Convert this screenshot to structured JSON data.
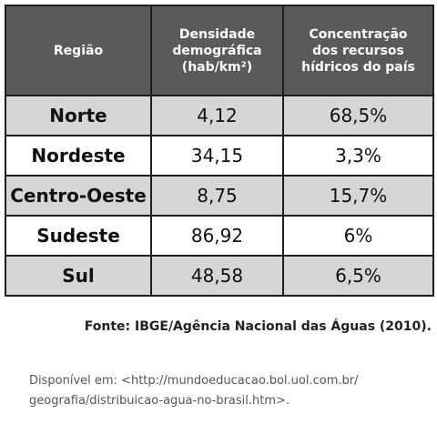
{
  "table": {
    "headers": [
      {
        "lines": [
          "Região"
        ]
      },
      {
        "lines": [
          "Densidade",
          "demográfica",
          "(hab/km²)"
        ]
      },
      {
        "lines": [
          "Concentração",
          "dos recursos",
          "hídricos do país"
        ]
      }
    ],
    "rows": [
      {
        "regiao": "Norte",
        "densidade": "4,12",
        "concentracao": "68,5%"
      },
      {
        "regiao": "Nordeste",
        "densidade": "34,15",
        "concentracao": "3,3%"
      },
      {
        "regiao": "Centro-Oeste",
        "densidade": "8,75",
        "concentracao": "15,7%"
      },
      {
        "regiao": "Sudeste",
        "densidade": "86,92",
        "concentracao": "6%"
      },
      {
        "regiao": "Sul",
        "densidade": "48,58",
        "concentracao": "6,5%"
      }
    ]
  },
  "source": "Fonte: IBGE/Agência Nacional das Águas (2010).",
  "availability": {
    "line1": "Disponível em: <http://mundoeducacao.bol.uol.com.br/",
    "line2": "geografia/distribuicao-agua-no-brasil.htm>."
  },
  "colors": {
    "header_bg": "#5a5a5a",
    "header_text": "#ffffff",
    "row_shaded": "#d6d6d6",
    "row_plain": "#ffffff",
    "border": "#1e1e1e"
  }
}
